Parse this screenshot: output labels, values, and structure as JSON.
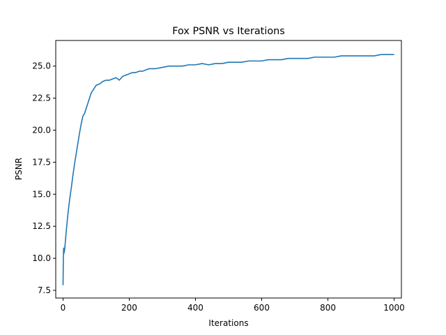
{
  "chart_data": {
    "type": "line",
    "title": "Fox PSNR vs Iterations",
    "xlabel": "Iterations",
    "ylabel": "PSNR",
    "xlim": [
      -22,
      1022
    ],
    "ylim": [
      6.9,
      27.0
    ],
    "grid": false,
    "x_ticks": [
      0,
      200,
      400,
      600,
      800,
      1000
    ],
    "x_tick_labels": [
      "0",
      "200",
      "400",
      "600",
      "800",
      "1000"
    ],
    "y_ticks": [
      7.5,
      10.0,
      12.5,
      15.0,
      17.5,
      20.0,
      22.5,
      25.0
    ],
    "y_tick_labels": [
      "7.5",
      "10.0",
      "12.5",
      "15.0",
      "17.5",
      "20.0",
      "22.5",
      "25.0"
    ],
    "series": [
      {
        "color": "#1f77b4",
        "x": [
          0,
          1,
          2,
          3,
          5,
          8,
          10,
          15,
          20,
          25,
          30,
          35,
          40,
          45,
          50,
          55,
          60,
          65,
          70,
          75,
          80,
          85,
          90,
          95,
          100,
          110,
          120,
          130,
          140,
          150,
          160,
          170,
          180,
          190,
          200,
          210,
          220,
          230,
          240,
          250,
          260,
          270,
          280,
          300,
          320,
          340,
          360,
          380,
          400,
          420,
          440,
          460,
          480,
          500,
          520,
          540,
          560,
          580,
          600,
          620,
          640,
          660,
          680,
          700,
          720,
          740,
          760,
          780,
          800,
          820,
          840,
          860,
          880,
          900,
          920,
          940,
          960,
          980,
          1000
        ],
        "y": [
          7.9,
          10.1,
          10.8,
          10.4,
          10.7,
          11.6,
          12.2,
          13.5,
          14.6,
          15.5,
          16.5,
          17.4,
          18.2,
          19.0,
          19.8,
          20.5,
          21.1,
          21.3,
          21.7,
          22.1,
          22.5,
          22.9,
          23.1,
          23.3,
          23.5,
          23.6,
          23.8,
          23.9,
          23.9,
          24.0,
          24.1,
          23.9,
          24.2,
          24.3,
          24.4,
          24.5,
          24.5,
          24.6,
          24.6,
          24.7,
          24.8,
          24.8,
          24.8,
          24.9,
          25.0,
          25.0,
          25.0,
          25.1,
          25.1,
          25.2,
          25.1,
          25.2,
          25.2,
          25.3,
          25.3,
          25.3,
          25.4,
          25.4,
          25.4,
          25.5,
          25.5,
          25.5,
          25.6,
          25.6,
          25.6,
          25.6,
          25.7,
          25.7,
          25.7,
          25.7,
          25.8,
          25.8,
          25.8,
          25.8,
          25.8,
          25.8,
          25.9,
          25.9,
          25.9
        ]
      }
    ]
  }
}
